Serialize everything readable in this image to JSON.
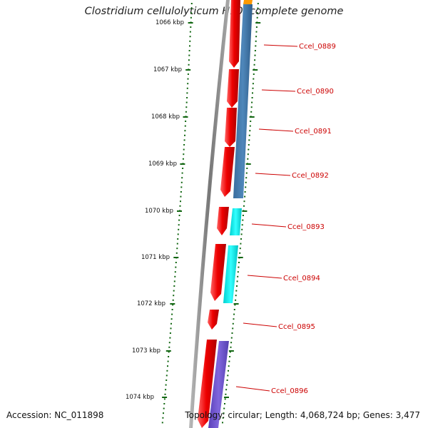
{
  "title": "Clostridium cellulolyticum H10, complete genome",
  "footer": {
    "accession": "Accession: NC_011898",
    "summary": "Topology: circular; Length: 4,068,724 bp; Genes: 3,477"
  },
  "colors": {
    "background": "#ffffff",
    "backbone": "#888888",
    "forward_cds": "#ee0000",
    "steelblue_feature": "#4a7fb0",
    "cyan_feature": "#00e5e5",
    "purple_feature": "#6f55cc",
    "orange_feature": "#ff9900",
    "ticks": "#116611",
    "gene_label": "#cc0000"
  },
  "axis": {
    "unit": "kbp",
    "tick_labels": [
      "1066 kbp",
      "1067 kbp",
      "1068 kbp",
      "1069 kbp",
      "1070 kbp",
      "1071 kbp",
      "1072 kbp",
      "1073 kbp",
      "1074 kbp"
    ]
  },
  "gene_labels": [
    "Ccel_0889",
    "Ccel_0890",
    "Ccel_0891",
    "Ccel_0892",
    "Ccel_0893",
    "Ccel_0894",
    "Ccel_0895",
    "Ccel_0896"
  ]
}
